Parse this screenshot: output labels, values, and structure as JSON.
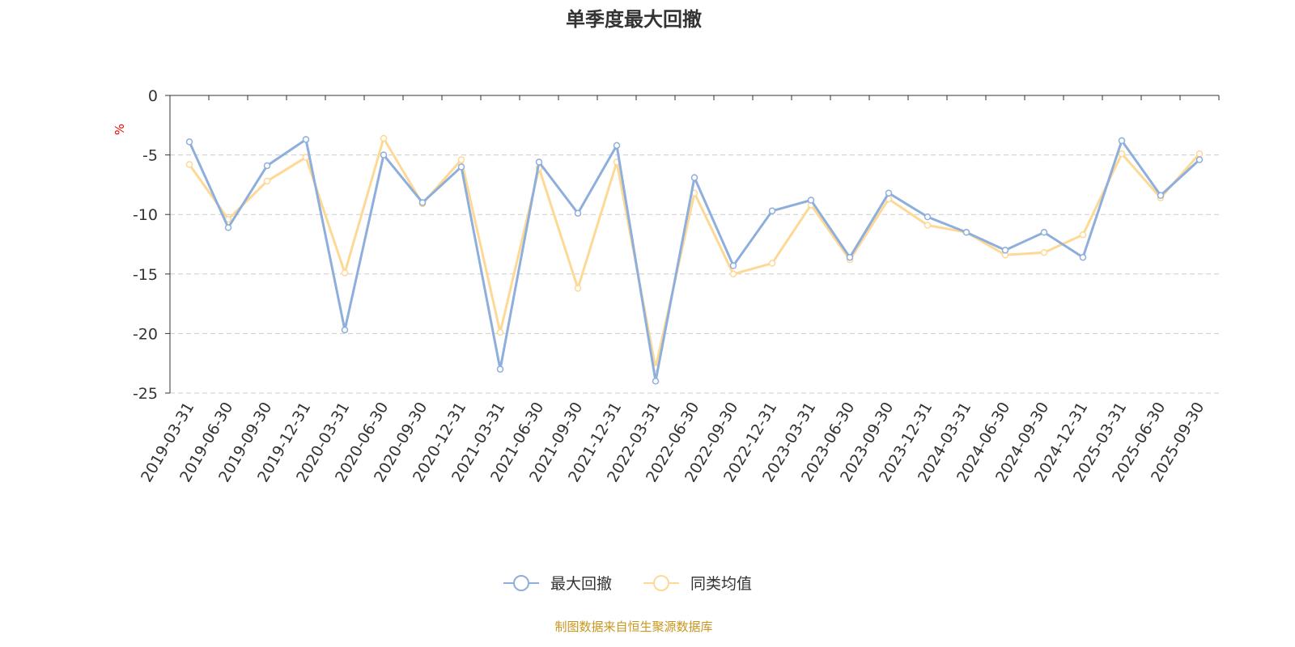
{
  "chart_data": {
    "type": "line",
    "title": "单季度最大回撤",
    "ylabel": "%",
    "xlabel": "",
    "ylim": [
      -25,
      0
    ],
    "yticks": [
      0,
      -5,
      -10,
      -15,
      -20,
      -25
    ],
    "grid": true,
    "legend_position": "bottom",
    "categories": [
      "2019-03-31",
      "2019-06-30",
      "2019-09-30",
      "2019-12-31",
      "2020-03-31",
      "2020-06-30",
      "2020-09-30",
      "2020-12-31",
      "2021-03-31",
      "2021-06-30",
      "2021-09-30",
      "2021-12-31",
      "2022-03-31",
      "2022-06-30",
      "2022-09-30",
      "2022-12-31",
      "2023-03-31",
      "2023-06-30",
      "2023-09-30",
      "2023-12-31",
      "2024-03-31",
      "2024-06-30",
      "2024-09-30",
      "2024-12-31",
      "2025-03-31",
      "2025-06-30",
      "2025-09-30"
    ],
    "series": [
      {
        "name": "最大回撤",
        "color": "#8eaedc",
        "values": [
          -3.9,
          -11.1,
          -5.9,
          -3.7,
          -19.7,
          -5.0,
          -9.0,
          -6.0,
          -23.0,
          -5.6,
          -9.9,
          -4.2,
          -24.0,
          -6.9,
          -14.3,
          -9.7,
          -8.8,
          -13.6,
          -8.2,
          -10.2,
          -11.5,
          -13.0,
          -11.5,
          -13.6,
          -3.8,
          -8.4,
          -5.4
        ]
      },
      {
        "name": "同类均值",
        "color": "#fdd995",
        "values": [
          -5.8,
          -10.4,
          -7.2,
          -5.2,
          -14.9,
          -3.6,
          -9.1,
          -5.4,
          -19.9,
          -6.1,
          -16.2,
          -5.6,
          -22.9,
          -8.2,
          -15.0,
          -14.1,
          -9.2,
          -13.8,
          -8.7,
          -10.9,
          -11.5,
          -13.4,
          -13.2,
          -11.7,
          -4.9,
          -8.6,
          -4.9
        ]
      }
    ],
    "source": "制图数据来自恒生聚源数据库"
  }
}
